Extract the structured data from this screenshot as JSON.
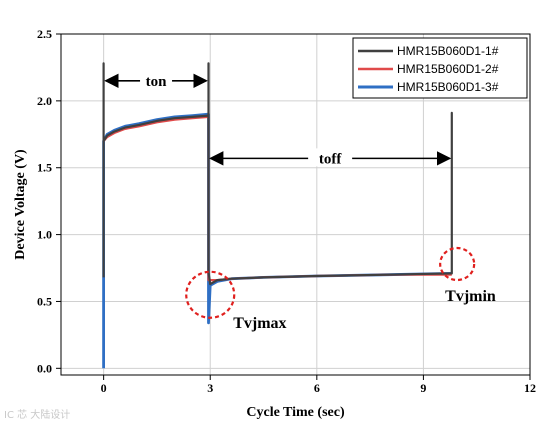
{
  "chart_data": {
    "type": "line",
    "title": "",
    "xlabel": "Cycle Time (sec)",
    "ylabel": "Device Voltage (V)",
    "xlim": [
      -1.2,
      12
    ],
    "ylim": [
      -0.05,
      2.5
    ],
    "xticks": [
      0,
      3,
      6,
      9,
      12
    ],
    "yticks": [
      0.0,
      0.5,
      1.0,
      1.5,
      2.0,
      2.5
    ],
    "xtick_labels": [
      "0",
      "3",
      "6",
      "9",
      "12"
    ],
    "ytick_labels": [
      "0.0",
      "0.5",
      "1.0",
      "1.5",
      "2.0",
      "2.5"
    ],
    "grid": true,
    "legend_position": "top-right",
    "series": [
      {
        "name": "HMR15B060D1-1#",
        "color": "#404040",
        "points": [
          [
            0,
            0.68
          ],
          [
            0,
            2.28
          ],
          [
            0,
            1.7
          ],
          [
            0.1,
            1.74
          ],
          [
            0.3,
            1.77
          ],
          [
            0.6,
            1.8
          ],
          [
            1.0,
            1.82
          ],
          [
            1.5,
            1.85
          ],
          [
            2.0,
            1.87
          ],
          [
            2.5,
            1.88
          ],
          [
            2.95,
            1.89
          ],
          [
            2.95,
            2.28
          ],
          [
            2.95,
            0.72
          ],
          [
            3.0,
            0.63
          ],
          [
            3.2,
            0.66
          ],
          [
            3.6,
            0.67
          ],
          [
            4.5,
            0.68
          ],
          [
            6.0,
            0.69
          ],
          [
            8.0,
            0.7
          ],
          [
            9.8,
            0.71
          ],
          [
            9.8,
            1.91
          ],
          [
            9.8,
            0.71
          ]
        ]
      },
      {
        "name": "HMR15B060D1-2#",
        "color": "#e04a4a",
        "points": [
          [
            0,
            1.7
          ],
          [
            0.1,
            1.73
          ],
          [
            0.3,
            1.76
          ],
          [
            0.6,
            1.79
          ],
          [
            1.0,
            1.81
          ],
          [
            1.5,
            1.84
          ],
          [
            2.0,
            1.86
          ],
          [
            2.5,
            1.87
          ],
          [
            2.95,
            1.88
          ],
          [
            2.95,
            0.66
          ],
          [
            3.2,
            0.66
          ],
          [
            3.6,
            0.67
          ],
          [
            4.5,
            0.68
          ],
          [
            6.0,
            0.69
          ],
          [
            8.0,
            0.7
          ],
          [
            9.8,
            0.7
          ]
        ]
      },
      {
        "name": "HMR15B060D1-3#",
        "color": "#2f6fc4",
        "points": [
          [
            0,
            0.0
          ],
          [
            0,
            1.7
          ],
          [
            0.1,
            1.75
          ],
          [
            0.3,
            1.78
          ],
          [
            0.6,
            1.81
          ],
          [
            1.0,
            1.83
          ],
          [
            1.5,
            1.86
          ],
          [
            2.0,
            1.88
          ],
          [
            2.5,
            1.89
          ],
          [
            2.95,
            1.9
          ],
          [
            2.95,
            0.34
          ],
          [
            3.0,
            0.62
          ],
          [
            3.2,
            0.65
          ],
          [
            3.6,
            0.67
          ],
          [
            4.5,
            0.68
          ],
          [
            6.0,
            0.69
          ],
          [
            8.0,
            0.7
          ],
          [
            9.8,
            0.71
          ]
        ]
      }
    ],
    "annotations": {
      "ton": {
        "label": "ton",
        "from": 0,
        "to": 2.95,
        "y": 2.15
      },
      "toff": {
        "label": "toff",
        "from": 2.95,
        "to": 9.8,
        "y": 1.57
      },
      "tvjmax": {
        "label": "Tvjmax",
        "x": 3.0,
        "y": 0.55
      },
      "tvjmin": {
        "label": "Tvjmin",
        "x": 9.95,
        "y": 0.78
      }
    }
  },
  "watermark": "IC 芯 大陆设计"
}
